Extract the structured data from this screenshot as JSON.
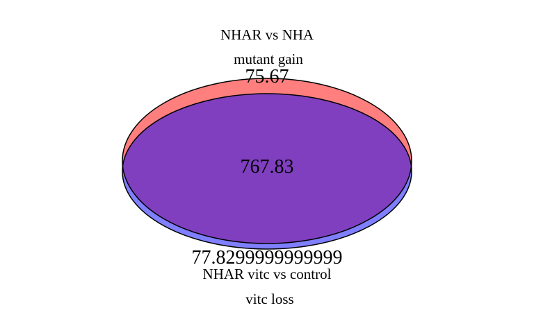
{
  "diagram": {
    "type": "venn",
    "sets": [
      {
        "title": "NHAR vs NHA",
        "subtitle": "mutant gain",
        "unique_value": "75.67",
        "color": "#ff0000",
        "fill_opacity": 0.5
      },
      {
        "title": "NHAR vitc vs control",
        "subtitle": "vitc loss",
        "unique_value": "77.8299999999999",
        "color": "#0000ff",
        "fill_opacity": 0.5
      }
    ],
    "intersection_value": "767.83",
    "outline_color": "#000000",
    "background_color": "#ffffff"
  }
}
